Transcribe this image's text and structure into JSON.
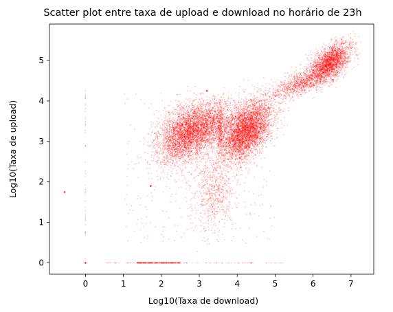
{
  "chart_data": {
    "type": "scatter",
    "title": "Scatter plot entre taxa de upload e download no horário de 23h",
    "xlabel": "Log10(Taxa de download)",
    "ylabel": "Log10(Taxa de upload)",
    "xlim": [
      -0.95,
      7.6
    ],
    "ylim": [
      -0.28,
      5.9
    ],
    "x_ticks": [
      0,
      1,
      2,
      3,
      4,
      5,
      6,
      7
    ],
    "y_ticks": [
      0,
      1,
      2,
      3,
      4,
      5
    ],
    "x_tick_labels": [
      "0",
      "1",
      "2",
      "3",
      "4",
      "5",
      "6",
      "7"
    ],
    "y_tick_labels": [
      "0",
      "1",
      "2",
      "3",
      "4",
      "5"
    ],
    "grid": false,
    "legend": "none",
    "marker_color": "#ff0000",
    "marker_alpha": 0.25,
    "series": [
      {
        "clusters": [
          {
            "cx": 2.55,
            "cy": 3.15,
            "sx": 0.35,
            "sy": 0.38,
            "rho": 0.35,
            "n": 2600
          },
          {
            "cx": 3.15,
            "cy": 3.35,
            "sx": 0.35,
            "sy": 0.32,
            "rho": 0.35,
            "n": 2200
          },
          {
            "cx": 4.35,
            "cy": 3.35,
            "sx": 0.3,
            "sy": 0.36,
            "rho": 0.4,
            "n": 3000
          },
          {
            "cx": 4.05,
            "cy": 3.15,
            "sx": 0.25,
            "sy": 0.35,
            "rho": 0.3,
            "n": 1400
          },
          {
            "cx": 6.45,
            "cy": 4.95,
            "sx": 0.28,
            "sy": 0.25,
            "rho": 0.6,
            "n": 2400
          },
          {
            "cx": 5.7,
            "cy": 4.45,
            "sx": 0.4,
            "sy": 0.2,
            "rho": 0.7,
            "n": 1000
          },
          {
            "cx": 3.4,
            "cy": 1.8,
            "sx": 0.28,
            "sy": 0.5,
            "rho": 0.1,
            "n": 700
          },
          {
            "cx": 3.55,
            "cy": 3.2,
            "sx": 0.04,
            "sy": 0.35,
            "rho": 0.0,
            "n": 250
          }
        ],
        "line_segments": [
          {
            "x0": 1.35,
            "x1": 2.5,
            "y": 0.0,
            "n": 300
          },
          {
            "x0": 0.45,
            "x1": 5.2,
            "y": 0.0,
            "n": 80
          },
          {
            "x0": 0.0,
            "x1": 0.0,
            "y0": 0.0,
            "y1": 4.3,
            "n": 45
          }
        ],
        "background_noise": {
          "x_range": [
            1.0,
            5.0
          ],
          "y_range": [
            0.4,
            4.2
          ],
          "n": 350
        },
        "isolated_points": [
          [
            -0.55,
            1.75
          ],
          [
            0.0,
            0.0
          ],
          [
            1.72,
            1.9
          ],
          [
            3.2,
            4.25
          ]
        ]
      }
    ]
  }
}
